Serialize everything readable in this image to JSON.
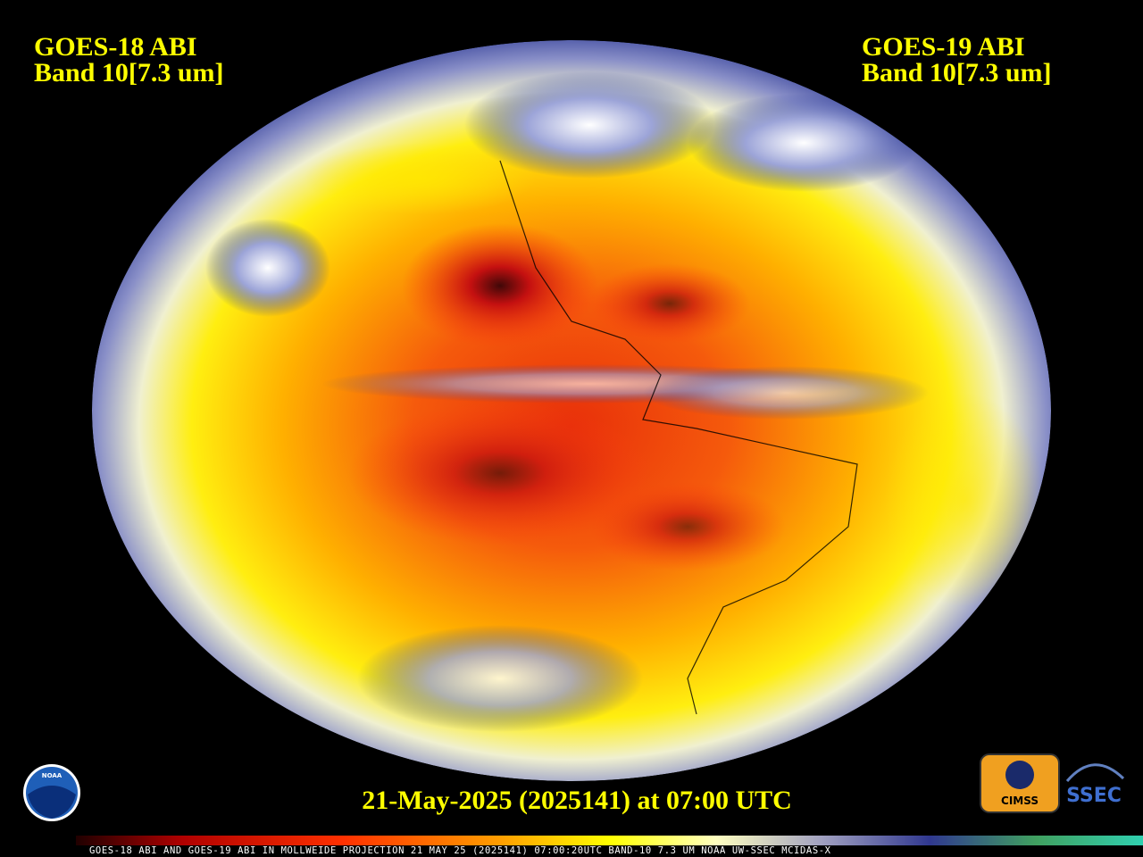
{
  "header": {
    "left": {
      "line1": "GOES-18 ABI",
      "line2": "Band 10[7.3 um]"
    },
    "right": {
      "line1": "GOES-19 ABI",
      "line2": "Band 10[7.3 um]"
    }
  },
  "timestamp": "21-May-2025 (2025141) at 07:00 UTC",
  "logos": {
    "noaa": "NOAA",
    "cimss": "CIMSS",
    "ssec": "SSEC"
  },
  "colorbar": {
    "caption": "GOES-18 ABI AND GOES-19 ABI IN MOLLWEIDE PROJECTION 21 MAY 25 (2025141) 07:00:20UTC BAND-10 7.3 UM NOAA UW-SSEC MCIDAS-X"
  }
}
